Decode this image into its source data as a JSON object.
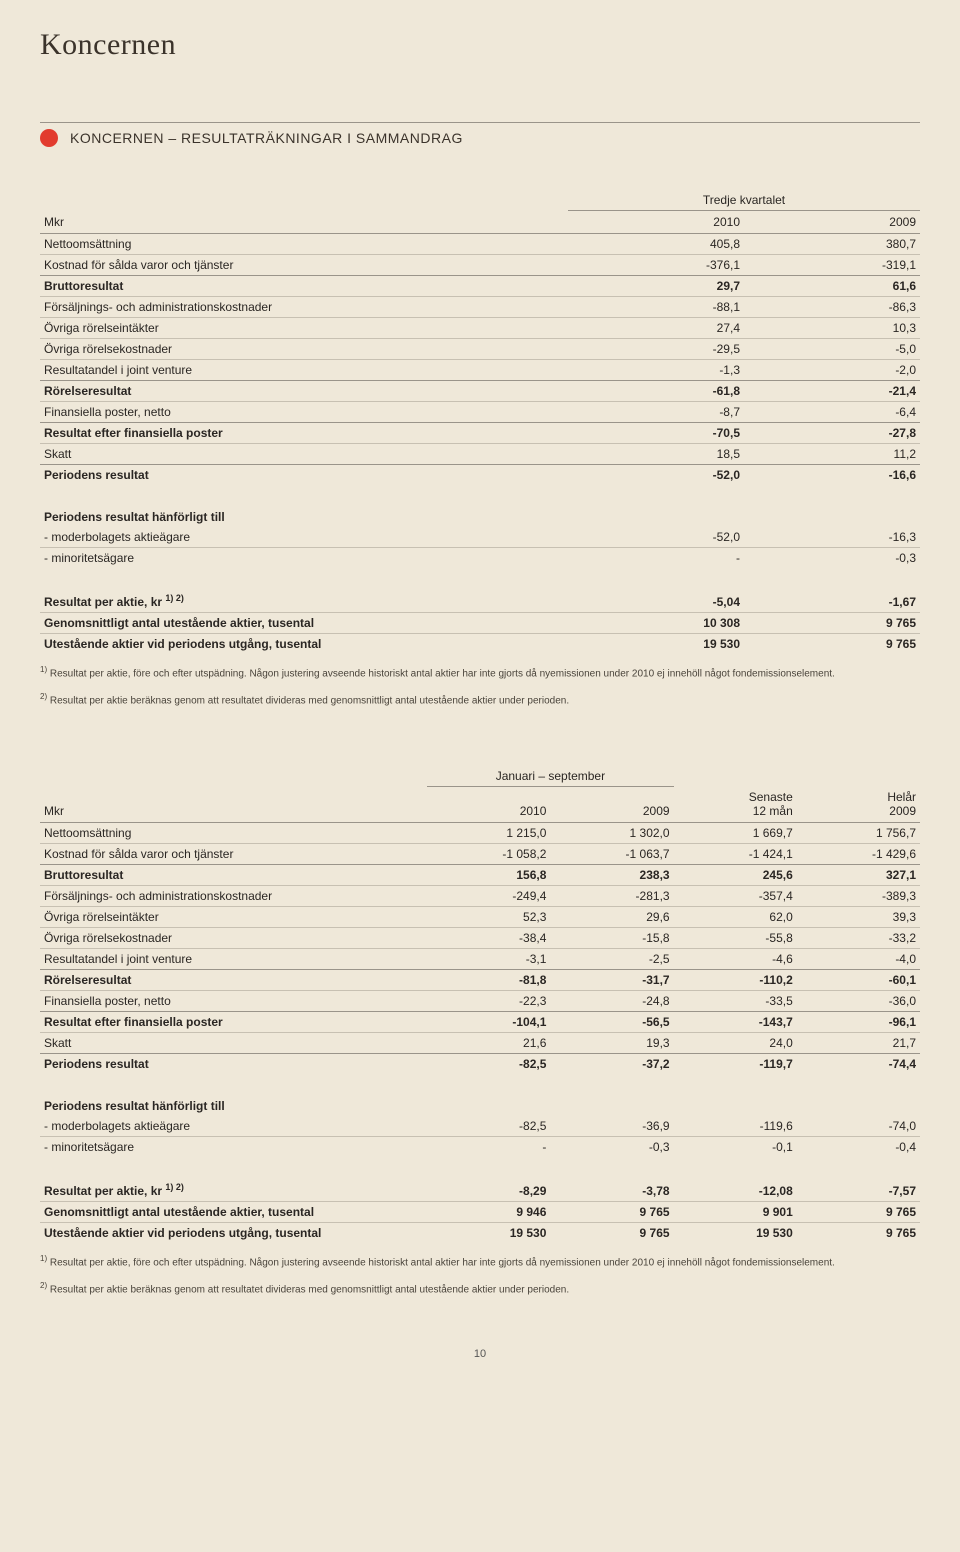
{
  "page": {
    "title": "Koncernen",
    "section_title": "KONCERNEN – RESULTATRÄKNINGAR I SAMMANDRAG",
    "page_number": "10"
  },
  "colors": {
    "background": "#efe8d9",
    "dot": "#e23b2e",
    "text": "#2a2623",
    "rule_strong": "#9a948a",
    "rule_light": "#c7c0b2"
  },
  "table1": {
    "super_header": "Tredje kvartalet",
    "columns": {
      "c0": "Mkr",
      "c1": "2010",
      "c2": "2009"
    },
    "rows": {
      "netto": {
        "label": "Nettoomsättning",
        "v1": "405,8",
        "v2": "380,7"
      },
      "kostnad": {
        "label": "Kostnad för sålda varor och tjänster",
        "v1": "-376,1",
        "v2": "-319,1"
      },
      "brutto": {
        "label": "Bruttoresultat",
        "v1": "29,7",
        "v2": "61,6"
      },
      "forsalj": {
        "label": "Försäljnings- och administrationskostnader",
        "v1": "-88,1",
        "v2": "-86,3"
      },
      "ovrint": {
        "label": "Övriga rörelseintäkter",
        "v1": "27,4",
        "v2": "10,3"
      },
      "ovrkost": {
        "label": "Övriga rörelsekostnader",
        "v1": "-29,5",
        "v2": "-5,0"
      },
      "jointv": {
        "label": "Resultatandel i joint venture",
        "v1": "-1,3",
        "v2": "-2,0"
      },
      "rorelse": {
        "label": "Rörelseresultat",
        "v1": "-61,8",
        "v2": "-21,4"
      },
      "finpost": {
        "label": "Finansiella poster, netto",
        "v1": "-8,7",
        "v2": "-6,4"
      },
      "resfin": {
        "label": "Resultat efter finansiella poster",
        "v1": "-70,5",
        "v2": "-27,8"
      },
      "skatt": {
        "label": "Skatt",
        "v1": "18,5",
        "v2": "11,2"
      },
      "periodres": {
        "label": "Periodens resultat",
        "v1": "-52,0",
        "v2": "-16,6"
      },
      "hanfor_h": {
        "label": "Periodens resultat hänförligt till"
      },
      "moder": {
        "label": "- moderbolagets aktieägare",
        "v1": "-52,0",
        "v2": "-16,3"
      },
      "minor": {
        "label": "- minoritetsägare",
        "v1": "-",
        "v2": "-0,3"
      },
      "resaktie_label": "Resultat per aktie, kr ",
      "resaktie_sup": "1) 2)",
      "resaktie": {
        "v1": "-5,04",
        "v2": "-1,67"
      },
      "genom": {
        "label": "Genomsnittligt antal utestående aktier, tusental",
        "v1": "10 308",
        "v2": "9 765"
      },
      "utest": {
        "label": "Utestående aktier vid periodens utgång, tusental",
        "v1": "19 530",
        "v2": "9 765"
      }
    }
  },
  "table2": {
    "super_header": "Januari – september",
    "columns": {
      "c0": "Mkr",
      "c1": "2010",
      "c2": "2009",
      "c3a": "Senaste",
      "c3b": "12 mån",
      "c4a": "Helår",
      "c4b": "2009"
    },
    "rows": {
      "netto": {
        "label": "Nettoomsättning",
        "v1": "1 215,0",
        "v2": "1 302,0",
        "v3": "1 669,7",
        "v4": "1 756,7"
      },
      "kostnad": {
        "label": "Kostnad för sålda varor och tjänster",
        "v1": "-1 058,2",
        "v2": "-1 063,7",
        "v3": "-1 424,1",
        "v4": "-1 429,6"
      },
      "brutto": {
        "label": "Bruttoresultat",
        "v1": "156,8",
        "v2": "238,3",
        "v3": "245,6",
        "v4": "327,1"
      },
      "forsalj": {
        "label": "Försäljnings- och administrationskostnader",
        "v1": "-249,4",
        "v2": "-281,3",
        "v3": "-357,4",
        "v4": "-389,3"
      },
      "ovrint": {
        "label": "Övriga rörelseintäkter",
        "v1": "52,3",
        "v2": "29,6",
        "v3": "62,0",
        "v4": "39,3"
      },
      "ovrkost": {
        "label": "Övriga rörelsekostnader",
        "v1": "-38,4",
        "v2": "-15,8",
        "v3": "-55,8",
        "v4": "-33,2"
      },
      "jointv": {
        "label": "Resultatandel i joint venture",
        "v1": "-3,1",
        "v2": "-2,5",
        "v3": "-4,6",
        "v4": "-4,0"
      },
      "rorelse": {
        "label": "Rörelseresultat",
        "v1": "-81,8",
        "v2": "-31,7",
        "v3": "-110,2",
        "v4": "-60,1"
      },
      "finpost": {
        "label": "Finansiella poster, netto",
        "v1": "-22,3",
        "v2": "-24,8",
        "v3": "-33,5",
        "v4": "-36,0"
      },
      "resfin": {
        "label": "Resultat efter finansiella poster",
        "v1": "-104,1",
        "v2": "-56,5",
        "v3": "-143,7",
        "v4": "-96,1"
      },
      "skatt": {
        "label": "Skatt",
        "v1": "21,6",
        "v2": "19,3",
        "v3": "24,0",
        "v4": "21,7"
      },
      "periodres": {
        "label": "Periodens resultat",
        "v1": "-82,5",
        "v2": "-37,2",
        "v3": "-119,7",
        "v4": "-74,4"
      },
      "hanfor_h": {
        "label": "Periodens resultat hänförligt till"
      },
      "moder": {
        "label": "- moderbolagets aktieägare",
        "v1": "-82,5",
        "v2": "-36,9",
        "v3": "-119,6",
        "v4": "-74,0"
      },
      "minor": {
        "label": "- minoritetsägare",
        "v1": "-",
        "v2": "-0,3",
        "v3": "-0,1",
        "v4": "-0,4"
      },
      "resaktie_label": "Resultat per aktie, kr ",
      "resaktie_sup": "1) 2)",
      "resaktie": {
        "v1": "-8,29",
        "v2": "-3,78",
        "v3": "-12,08",
        "v4": "-7,57"
      },
      "genom": {
        "label": "Genomsnittligt antal utestående aktier, tusental",
        "v1": "9 946",
        "v2": "9 765",
        "v3": "9 901",
        "v4": "9 765"
      },
      "utest": {
        "label": "Utestående aktier vid periodens utgång, tusental",
        "v1": "19 530",
        "v2": "9 765",
        "v3": "19 530",
        "v4": "9 765"
      }
    }
  },
  "footnotes": {
    "f1_sup": "1)",
    "f1": " Resultat per aktie, före och efter utspädning. Någon justering avseende historiskt antal aktier har inte gjorts då nyemissionen under 2010 ej innehöll något fondemissionselement.",
    "f2_sup": "2)",
    "f2": " Resultat per aktie beräknas genom att resultatet divideras med genomsnittligt antal utestående aktier under perioden."
  }
}
